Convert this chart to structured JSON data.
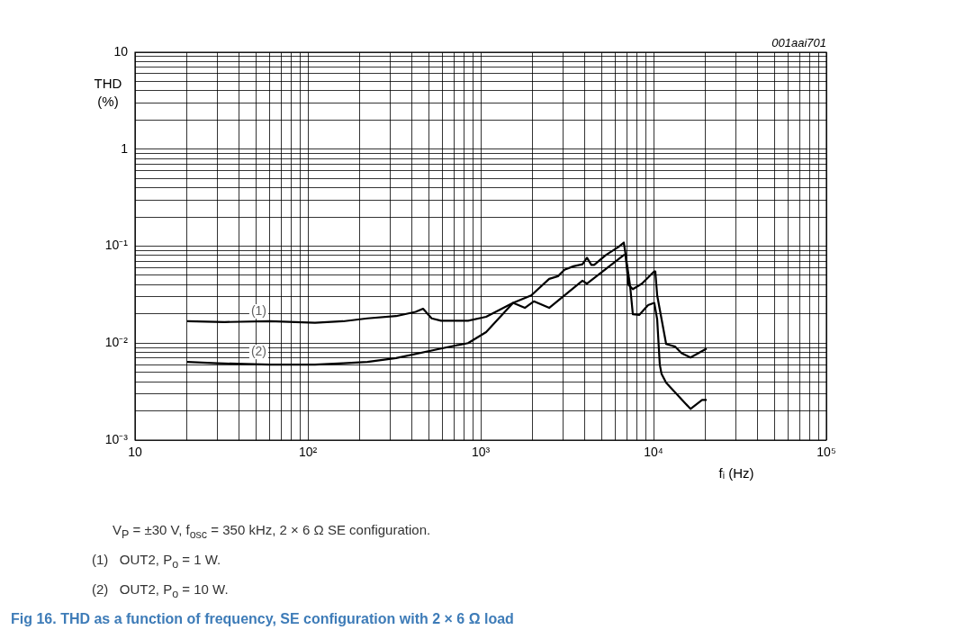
{
  "chart_data": {
    "type": "line",
    "title": "Fig 16.  THD as a function of frequency, SE configuration with 2 × 6 Ω load",
    "xlabel": "fᵢ (Hz)",
    "ylabel": "THD\n(%)",
    "log": "xy",
    "grid": true,
    "marker": "none",
    "line_style": "solid",
    "xlim": [
      10,
      100000
    ],
    "ylim": [
      0.001,
      10
    ],
    "xticks": [
      {
        "value": 10,
        "label": "10"
      },
      {
        "value": 20,
        "label": null
      },
      {
        "value": 30,
        "label": null
      },
      {
        "value": 40,
        "label": null
      },
      {
        "value": 50,
        "label": null
      },
      {
        "value": 60,
        "label": null
      },
      {
        "value": 70,
        "label": null
      },
      {
        "value": 80,
        "label": null
      },
      {
        "value": 90,
        "label": null
      },
      {
        "value": 100,
        "label": "10²"
      },
      {
        "value": 200,
        "label": null
      },
      {
        "value": 300,
        "label": null
      },
      {
        "value": 400,
        "label": null
      },
      {
        "value": 500,
        "label": null
      },
      {
        "value": 600,
        "label": null
      },
      {
        "value": 700,
        "label": null
      },
      {
        "value": 800,
        "label": null
      },
      {
        "value": 900,
        "label": null
      },
      {
        "value": 1000,
        "label": "10³"
      },
      {
        "value": 2000,
        "label": null
      },
      {
        "value": 3000,
        "label": null
      },
      {
        "value": 4000,
        "label": null
      },
      {
        "value": 5000,
        "label": null
      },
      {
        "value": 6000,
        "label": null
      },
      {
        "value": 7000,
        "label": null
      },
      {
        "value": 8000,
        "label": null
      },
      {
        "value": 9000,
        "label": null
      },
      {
        "value": 10000,
        "label": "10⁴"
      },
      {
        "value": 20000,
        "label": null
      },
      {
        "value": 30000,
        "label": null
      },
      {
        "value": 40000,
        "label": null
      },
      {
        "value": 50000,
        "label": null
      },
      {
        "value": 60000,
        "label": null
      },
      {
        "value": 70000,
        "label": null
      },
      {
        "value": 80000,
        "label": null
      },
      {
        "value": 90000,
        "label": null
      },
      {
        "value": 100000,
        "label": "10⁵"
      }
    ],
    "yticks": [
      {
        "value": 0.001,
        "label": "10⁻³"
      },
      {
        "value": 0.002,
        "label": null
      },
      {
        "value": 0.003,
        "label": null
      },
      {
        "value": 0.004,
        "label": null
      },
      {
        "value": 0.005,
        "label": null
      },
      {
        "value": 0.006,
        "label": null
      },
      {
        "value": 0.007,
        "label": null
      },
      {
        "value": 0.008,
        "label": null
      },
      {
        "value": 0.009,
        "label": null
      },
      {
        "value": 0.01,
        "label": "10⁻²"
      },
      {
        "value": 0.02,
        "label": null
      },
      {
        "value": 0.03,
        "label": null
      },
      {
        "value": 0.04,
        "label": null
      },
      {
        "value": 0.05,
        "label": null
      },
      {
        "value": 0.06,
        "label": null
      },
      {
        "value": 0.07,
        "label": null
      },
      {
        "value": 0.08,
        "label": null
      },
      {
        "value": 0.09,
        "label": null
      },
      {
        "value": 0.1,
        "label": "10⁻¹"
      },
      {
        "value": 0.2,
        "label": null
      },
      {
        "value": 0.3,
        "label": null
      },
      {
        "value": 0.4,
        "label": null
      },
      {
        "value": 0.5,
        "label": null
      },
      {
        "value": 0.6,
        "label": null
      },
      {
        "value": 0.7,
        "label": null
      },
      {
        "value": 0.8,
        "label": null
      },
      {
        "value": 0.9,
        "label": null
      },
      {
        "value": 1,
        "label": "1"
      },
      {
        "value": 2,
        "label": null
      },
      {
        "value": 3,
        "label": null
      },
      {
        "value": 4,
        "label": null
      },
      {
        "value": 5,
        "label": null
      },
      {
        "value": 6,
        "label": null
      },
      {
        "value": 7,
        "label": null
      },
      {
        "value": 8,
        "label": null
      },
      {
        "value": 9,
        "label": null
      },
      {
        "value": 10,
        "label": "10"
      }
    ],
    "series": [
      {
        "name": "(1)",
        "color": "#000000",
        "x": [
          20,
          33,
          60,
          110,
          160,
          221,
          324,
          420,
          464,
          520,
          590,
          845,
          1075,
          1540,
          1800,
          2030,
          2490,
          3880,
          4120,
          6730,
          6900,
          7330,
          7590,
          8260,
          9300,
          10100,
          10500,
          10870,
          11130,
          11830,
          16360,
          19100,
          20300
        ],
        "values": [
          0.0168,
          0.0165,
          0.0168,
          0.0162,
          0.0168,
          0.018,
          0.019,
          0.021,
          0.0226,
          0.018,
          0.017,
          0.017,
          0.0187,
          0.026,
          0.0231,
          0.027,
          0.0231,
          0.044,
          0.041,
          0.081,
          0.081,
          0.038,
          0.0199,
          0.0195,
          0.0247,
          0.026,
          0.0175,
          0.006,
          0.0048,
          0.0039,
          0.0021,
          0.0026,
          0.0026
        ]
      },
      {
        "name": "(2)",
        "color": "#000000",
        "x": [
          20,
          30,
          60,
          110,
          160,
          221,
          324,
          590,
          845,
          1075,
          1540,
          1960,
          2490,
          2800,
          3050,
          3440,
          3880,
          4120,
          4370,
          4530,
          5300,
          6270,
          6730,
          6900,
          7150,
          7590,
          8560,
          10100,
          10240,
          10500,
          11830,
          13340,
          14500,
          16360,
          20300
        ],
        "values": [
          0.0064,
          0.0062,
          0.006,
          0.006,
          0.0062,
          0.0064,
          0.007,
          0.0088,
          0.01,
          0.013,
          0.026,
          0.031,
          0.046,
          0.049,
          0.057,
          0.062,
          0.065,
          0.076,
          0.064,
          0.064,
          0.081,
          0.098,
          0.109,
          0.081,
          0.04,
          0.036,
          0.041,
          0.055,
          0.055,
          0.031,
          0.0098,
          0.0092,
          0.0079,
          0.0071,
          0.0088
        ]
      }
    ],
    "annotations": [
      "001aai701",
      "V$_{P}$ = ±30 V, f$_{osc}$ = 350 kHz, 2 × 6 Ω SE configuration.",
      "(1)   OUT2, P$_{o}$ = 1 W.",
      "(2)   OUT2, P$_{o}$ = 10 W."
    ]
  }
}
